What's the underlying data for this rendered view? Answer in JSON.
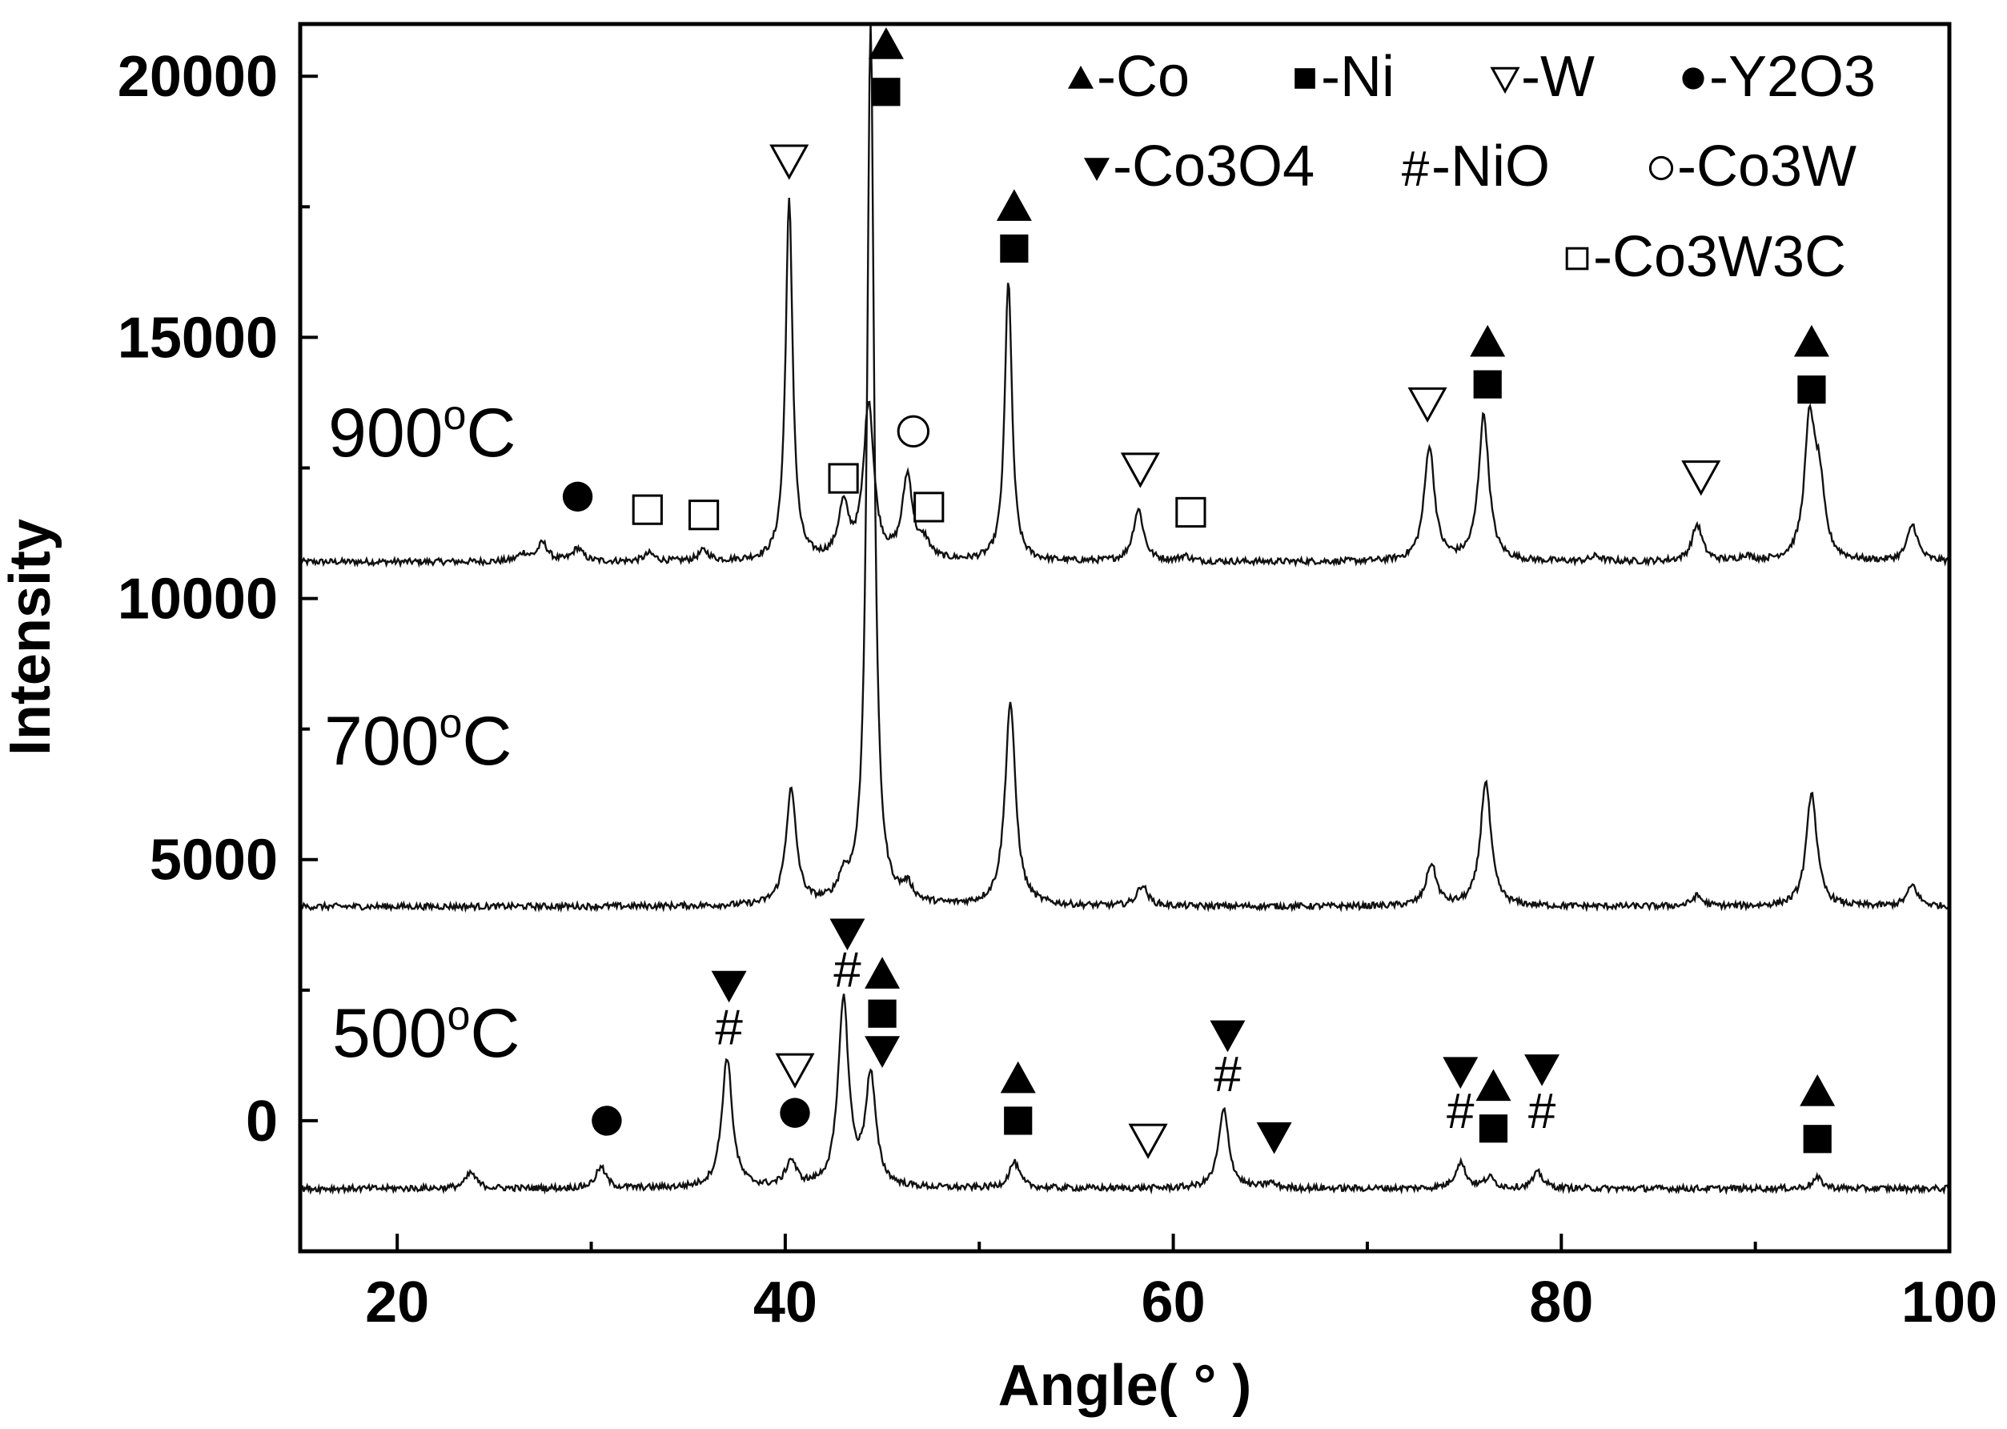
{
  "chart_data": {
    "type": "line",
    "xlabel": "Angle( ° )",
    "ylabel": "Intensity",
    "xlim": [
      15,
      100
    ],
    "ylim": [
      -2500,
      21000
    ],
    "xticks": [
      20,
      40,
      60,
      80,
      100
    ],
    "yticks": [
      0,
      5000,
      10000,
      15000,
      20000
    ],
    "grid": false,
    "legend_position": "top-right",
    "legend": [
      {
        "symbol": "triangle-up-filled",
        "label": "-Co"
      },
      {
        "symbol": "square-filled",
        "label": "-Ni"
      },
      {
        "symbol": "triangle-down-open",
        "label": "-W"
      },
      {
        "symbol": "circle-filled",
        "label": "-Y2O3"
      },
      {
        "symbol": "triangle-down-filled",
        "label": "-Co3O4"
      },
      {
        "symbol": "hash",
        "label": "-NiO"
      },
      {
        "symbol": "circle-open",
        "label": "-Co3W"
      },
      {
        "symbol": "square-open",
        "label": "-Co3W3C"
      }
    ],
    "series": [
      {
        "name": "900°C",
        "baseline": 10700,
        "peaks": [
          [
            26.5,
            10850
          ],
          [
            27.5,
            11050
          ],
          [
            29.3,
            10950
          ],
          [
            33.0,
            10850
          ],
          [
            35.8,
            10900
          ],
          [
            40.2,
            17600
          ],
          [
            43.0,
            11700
          ],
          [
            44.3,
            13700
          ],
          [
            46.3,
            12300
          ],
          [
            47.2,
            11000
          ],
          [
            51.5,
            16100
          ],
          [
            58.2,
            11700
          ],
          [
            60.6,
            10800
          ],
          [
            73.2,
            12900
          ],
          [
            76.0,
            13500
          ],
          [
            81.8,
            10800
          ],
          [
            87.0,
            11400
          ],
          [
            89.5,
            10800
          ],
          [
            92.8,
            13300
          ],
          [
            93.3,
            12000
          ],
          [
            98.1,
            11400
          ]
        ]
      },
      {
        "name": "700°C",
        "baseline": 4100,
        "peaks": [
          [
            40.3,
            6300
          ],
          [
            43.0,
            4500
          ],
          [
            44.4,
            21000
          ],
          [
            46.3,
            4400
          ],
          [
            51.6,
            8000
          ],
          [
            58.4,
            4500
          ],
          [
            73.3,
            4900
          ],
          [
            76.1,
            6500
          ],
          [
            87.0,
            4300
          ],
          [
            92.9,
            6300
          ],
          [
            98.1,
            4500
          ]
        ]
      },
      {
        "name": "500°C",
        "baseline": -1300,
        "peaks": [
          [
            23.8,
            -1000
          ],
          [
            30.5,
            -900
          ],
          [
            37.0,
            1200
          ],
          [
            40.3,
            -800
          ],
          [
            43.0,
            2300
          ],
          [
            44.4,
            800
          ],
          [
            51.8,
            -800
          ],
          [
            62.6,
            200
          ],
          [
            65.0,
            -1200
          ],
          [
            74.8,
            -800
          ],
          [
            76.3,
            -1100
          ],
          [
            78.8,
            -1000
          ],
          [
            93.2,
            -1100
          ]
        ]
      }
    ],
    "series_labels": [
      "900°C",
      "700°C",
      "500°C"
    ],
    "annotations": [
      {
        "marker": "circle-filled",
        "x": 29.3,
        "y": 11950
      },
      {
        "marker": "square-open",
        "x": 32.9,
        "y": 11700
      },
      {
        "marker": "square-open",
        "x": 35.8,
        "y": 11600
      },
      {
        "marker": "triangle-down-open",
        "x": 40.2,
        "y": 18400
      },
      {
        "marker": "square-open",
        "x": 43.0,
        "y": 12300
      },
      {
        "marker": "triangle-up-filled",
        "x": 45.2,
        "y": 20600
      },
      {
        "marker": "square-filled",
        "x": 45.2,
        "y": 19700
      },
      {
        "marker": "circle-open",
        "x": 46.6,
        "y": 13200
      },
      {
        "marker": "square-open",
        "x": 47.4,
        "y": 11750
      },
      {
        "marker": "triangle-up-filled",
        "x": 51.8,
        "y": 17500
      },
      {
        "marker": "square-filled",
        "x": 51.8,
        "y": 16700
      },
      {
        "marker": "triangle-down-open",
        "x": 58.3,
        "y": 12500
      },
      {
        "marker": "square-open",
        "x": 60.9,
        "y": 11650
      },
      {
        "marker": "triangle-down-open",
        "x": 73.1,
        "y": 13750
      },
      {
        "marker": "triangle-up-filled",
        "x": 76.2,
        "y": 14900
      },
      {
        "marker": "square-filled",
        "x": 76.2,
        "y": 14100
      },
      {
        "marker": "triangle-down-open",
        "x": 87.2,
        "y": 12350
      },
      {
        "marker": "triangle-up-filled",
        "x": 92.9,
        "y": 14900
      },
      {
        "marker": "square-filled",
        "x": 92.9,
        "y": 14000
      },
      {
        "marker": "circle-filled",
        "x": 30.8,
        "y": 0
      },
      {
        "marker": "triangle-down-filled",
        "x": 37.1,
        "y": 2600
      },
      {
        "marker": "hash",
        "x": 37.1,
        "y": 1800
      },
      {
        "marker": "triangle-down-open",
        "x": 40.5,
        "y": 1000
      },
      {
        "marker": "circle-filled",
        "x": 40.5,
        "y": 150
      },
      {
        "marker": "triangle-down-filled",
        "x": 43.2,
        "y": 3600
      },
      {
        "marker": "hash",
        "x": 43.2,
        "y": 2900
      },
      {
        "marker": "triangle-up-filled",
        "x": 45.0,
        "y": 2800
      },
      {
        "marker": "square-filled",
        "x": 45.0,
        "y": 2050
      },
      {
        "marker": "triangle-down-filled",
        "x": 45.0,
        "y": 1350
      },
      {
        "marker": "triangle-up-filled",
        "x": 52.0,
        "y": 800
      },
      {
        "marker": "square-filled",
        "x": 52.0,
        "y": 0
      },
      {
        "marker": "triangle-down-open",
        "x": 58.7,
        "y": -350
      },
      {
        "marker": "triangle-down-filled",
        "x": 62.8,
        "y": 1650
      },
      {
        "marker": "hash",
        "x": 62.8,
        "y": 900
      },
      {
        "marker": "triangle-down-filled",
        "x": 65.2,
        "y": -300
      },
      {
        "marker": "triangle-down-filled",
        "x": 74.8,
        "y": 950
      },
      {
        "marker": "hash",
        "x": 74.8,
        "y": 200
      },
      {
        "marker": "triangle-up-filled",
        "x": 76.5,
        "y": 650
      },
      {
        "marker": "square-filled",
        "x": 76.5,
        "y": -150
      },
      {
        "marker": "triangle-down-filled",
        "x": 79.0,
        "y": 1000
      },
      {
        "marker": "hash",
        "x": 79.0,
        "y": 200
      },
      {
        "marker": "triangle-up-filled",
        "x": 93.2,
        "y": 550
      },
      {
        "marker": "square-filled",
        "x": 93.2,
        "y": -350
      }
    ]
  }
}
